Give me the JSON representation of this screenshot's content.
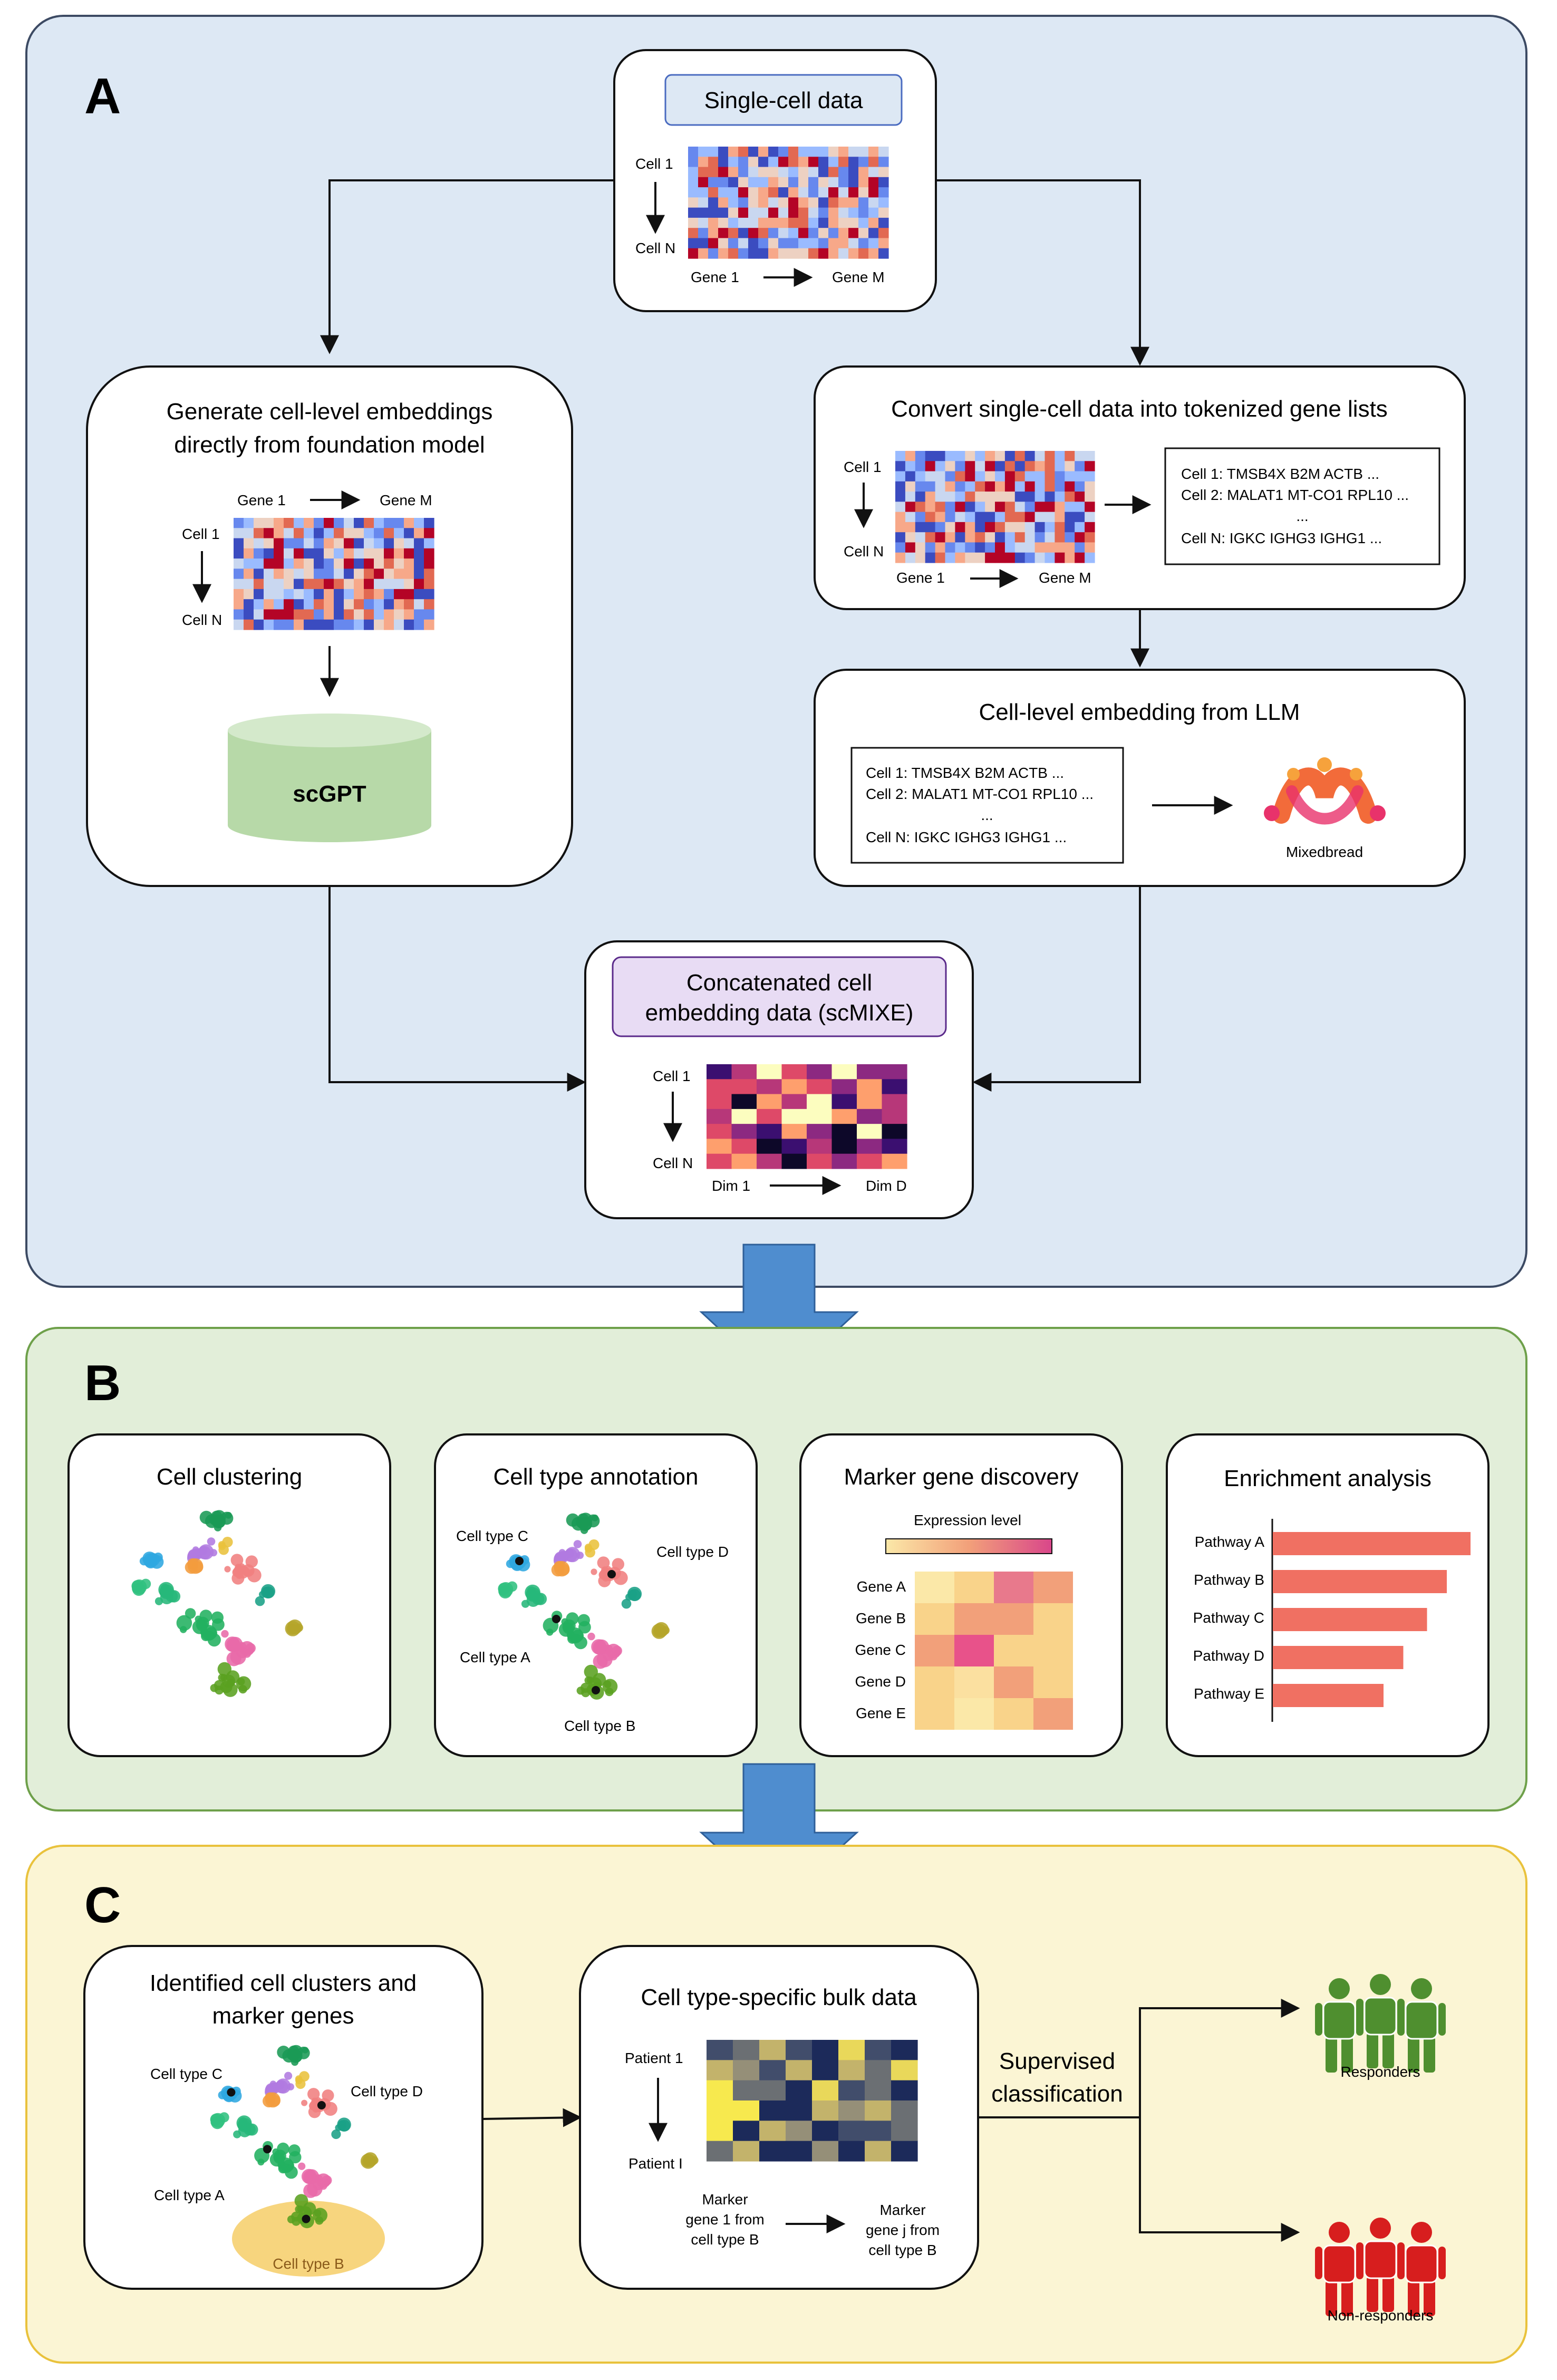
{
  "colors": {
    "panel_a_fill": "#dde8f4",
    "panel_a_stroke": "#3c4a63",
    "panel_b_fill": "#e2eed9",
    "panel_b_stroke": "#6ea04a",
    "panel_c_fill": "#fbf5d4",
    "panel_c_stroke": "#e9c23c",
    "down_arrow": "#4f8dcf",
    "bar": "#f07062",
    "cylinder": "#b7d9a8",
    "responder_icon": "#4f8f2f",
    "nonresponder_icon": "#d71e1e",
    "highlight_ellipse": "#f6d070"
  },
  "panel_a": {
    "letter": "A",
    "single_cell": {
      "label": "Single-cell data",
      "row_start": "Cell 1",
      "row_end": "Cell N",
      "col_start": "Gene 1",
      "col_end": "Gene M"
    },
    "foundation": {
      "title_line1": "Generate cell-level embeddings",
      "title_line2": "directly from foundation model",
      "col_start": "Gene 1",
      "col_end": "Gene M",
      "row_start": "Cell 1",
      "row_end": "Cell N",
      "model": "scGPT"
    },
    "tokenize": {
      "title": "Convert single-cell data into tokenized gene lists",
      "row_start": "Cell 1",
      "row_end": "Cell N",
      "col_start": "Gene 1",
      "col_end": "Gene M",
      "lines": [
        "Cell 1: TMSB4X B2M ACTB ...",
        "Cell 2: MALAT1 MT-CO1 RPL10 ...",
        "...",
        "Cell N: IGKC IGHG3 IGHG1 ..."
      ]
    },
    "llm": {
      "title": "Cell-level embedding from LLM",
      "lines": [
        "Cell 1: TMSB4X B2M ACTB ...",
        "Cell 2: MALAT1 MT-CO1 RPL10 ...",
        "...",
        "Cell N: IGKC IGHG3 IGHG1 ..."
      ],
      "logo_label": "Mixedbread"
    },
    "concat": {
      "label_line1": "Concatenated cell",
      "label_line2": "embedding data (scMIXE)",
      "row_start": "Cell 1",
      "row_end": "Cell N",
      "col_start": "Dim 1",
      "col_end": "Dim D"
    }
  },
  "panel_b": {
    "letter": "B",
    "clustering": {
      "title": "Cell clustering"
    },
    "annotation": {
      "title": "Cell type annotation",
      "labels": [
        "Cell type C",
        "Cell type D",
        "Cell type A",
        "Cell type B"
      ]
    },
    "marker": {
      "title": "Marker gene discovery",
      "legend": "Expression level",
      "genes": [
        "Gene A",
        "Gene B",
        "Gene C",
        "Gene D",
        "Gene E"
      ]
    },
    "enrichment": {
      "title": "Enrichment analysis",
      "pathways": [
        "Pathway A",
        "Pathway B",
        "Pathway C",
        "Pathway D",
        "Pathway E"
      ],
      "values": [
        1.0,
        0.88,
        0.78,
        0.66,
        0.56
      ]
    }
  },
  "panel_c": {
    "letter": "C",
    "clusters": {
      "title_line1": "Identified cell clusters and",
      "title_line2": "marker genes",
      "labels": [
        "Cell type C",
        "Cell type D",
        "Cell type A",
        "Cell type B"
      ]
    },
    "bulk": {
      "title": "Cell type-specific bulk data",
      "row_start": "Patient 1",
      "row_end": "Patient I",
      "col_start": [
        "Marker",
        "gene 1 from",
        "cell type B"
      ],
      "col_end": [
        "Marker",
        "gene j from",
        "cell type B"
      ]
    },
    "classification": {
      "line1": "Supervised",
      "line2": "classification"
    },
    "outcomes": {
      "responders": "Responders",
      "non_responders": "Non-responders"
    }
  }
}
